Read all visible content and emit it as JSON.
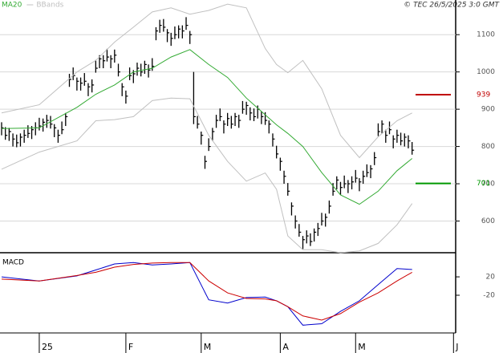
{
  "chart_data": [
    {
      "type": "ohlc",
      "source": "© TEC 26/5/2025 3:0 GMT",
      "xlim": [
        0,
        121
      ],
      "ylim": [
        515,
        1193
      ],
      "yticks": [
        600,
        700,
        800,
        900,
        1000,
        1100
      ],
      "grid": true,
      "bar_color": "#000000",
      "x": [
        0,
        1,
        2,
        3,
        4,
        5,
        6,
        7,
        8,
        9,
        10,
        11,
        12,
        13,
        14,
        15,
        16,
        17,
        18,
        19,
        20,
        21,
        22,
        23,
        24,
        25,
        26,
        27,
        28,
        29,
        30,
        31,
        32,
        33,
        34,
        35,
        36,
        37,
        38,
        39,
        40,
        41,
        42,
        43,
        44,
        45,
        46,
        47,
        48,
        49,
        50,
        51,
        52,
        53,
        54,
        55,
        56,
        57,
        58,
        59,
        60,
        61,
        62,
        63,
        64,
        65,
        66,
        67,
        68,
        69,
        70,
        71,
        72,
        73,
        74,
        75,
        76,
        77,
        78,
        79,
        80,
        81,
        82,
        83,
        84,
        85,
        86,
        87,
        88,
        89,
        90,
        91,
        92,
        93,
        94,
        95,
        96,
        97,
        98,
        99,
        100,
        101,
        102,
        103,
        104,
        105,
        106,
        107,
        108,
        109
      ],
      "high": [
        865,
        852,
        850,
        835,
        832,
        835,
        845,
        857,
        855,
        865,
        877,
        875,
        885,
        882,
        860,
        845,
        867,
        890,
        995,
        1012,
        985,
        985,
        997,
        970,
        980,
        1032,
        1045,
        1045,
        1062,
        1045,
        1060,
        1022,
        970,
        950,
        1012,
        1005,
        1025,
        1022,
        1030,
        1020,
        1037,
        1120,
        1140,
        1142,
        1115,
        1105,
        1122,
        1125,
        1125,
        1147,
        1110,
        1000,
        882,
        840,
        775,
        822,
        850,
        885,
        902,
        870,
        890,
        882,
        890,
        885,
        922,
        920,
        905,
        902,
        910,
        895,
        892,
        870,
        835,
        802,
        770,
        735,
        702,
        650,
        615,
        592,
        560,
        575,
        567,
        580,
        595,
        622,
        620,
        655,
        702,
        720,
        705,
        722,
        710,
        720,
        737,
        715,
        735,
        752,
        750,
        785,
        862,
        870,
        845,
        867,
        830,
        845,
        837,
        835,
        830,
        812
      ],
      "low": [
        830,
        818,
        815,
        800,
        798,
        800,
        810,
        823,
        820,
        830,
        843,
        840,
        850,
        848,
        825,
        810,
        833,
        855,
        960,
        978,
        950,
        950,
        963,
        935,
        945,
        998,
        1010,
        1010,
        1028,
        1010,
        1025,
        988,
        935,
        915,
        978,
        970,
        990,
        988,
        995,
        985,
        1003,
        1085,
        1105,
        1108,
        1080,
        1070,
        1088,
        1090,
        1090,
        1113,
        1075,
        860,
        848,
        805,
        740,
        788,
        815,
        850,
        868,
        835,
        855,
        848,
        855,
        850,
        888,
        885,
        870,
        868,
        875,
        860,
        858,
        835,
        800,
        768,
        735,
        700,
        668,
        615,
        580,
        558,
        525,
        540,
        533,
        545,
        560,
        588,
        585,
        620,
        668,
        685,
        670,
        688,
        675,
        685,
        703,
        680,
        700,
        718,
        715,
        750,
        828,
        835,
        810,
        833,
        795,
        810,
        803,
        800,
        795,
        778
      ],
      "close": [
        850,
        830,
        840,
        820,
        810,
        825,
        830,
        835,
        845,
        850,
        855,
        865,
        870,
        860,
        850,
        830,
        845,
        880,
        980,
        990,
        975,
        970,
        975,
        960,
        965,
        1010,
        1035,
        1030,
        1040,
        1035,
        1045,
        1000,
        960,
        935,
        990,
        995,
        1010,
        1000,
        1020,
        1005,
        1015,
        1110,
        1125,
        1120,
        1105,
        1090,
        1100,
        1115,
        1110,
        1125,
        1100,
        880,
        860,
        830,
        760,
        800,
        840,
        870,
        880,
        860,
        875,
        860,
        880,
        870,
        900,
        910,
        890,
        880,
        900,
        880,
        870,
        860,
        820,
        780,
        760,
        720,
        680,
        640,
        600,
        570,
        550,
        560,
        545,
        570,
        580,
        600,
        610,
        640,
        680,
        710,
        690,
        700,
        700,
        705,
        715,
        705,
        720,
        730,
        740,
        770,
        840,
        860,
        830,
        845,
        820,
        830,
        815,
        825,
        815,
        790
      ],
      "series": [
        {
          "name": "MA20",
          "color": "#33aa33",
          "x": [
            0,
            10,
            20,
            25,
            30,
            35,
            40,
            45,
            50,
            55,
            60,
            65,
            70,
            73,
            76,
            80,
            85,
            90,
            95,
            100,
            105,
            109
          ],
          "values": [
            848,
            850,
            905,
            940,
            965,
            1000,
            1010,
            1040,
            1060,
            1020,
            985,
            930,
            885,
            858,
            835,
            800,
            730,
            670,
            645,
            680,
            735,
            768
          ]
        },
        {
          "name": "BBands",
          "color": "#c0c0c0",
          "x": [
            0,
            10,
            20,
            25,
            30,
            35,
            40,
            45,
            50,
            55,
            60,
            65,
            70,
            73,
            76,
            80,
            85,
            90,
            95,
            100,
            105,
            109
          ],
          "upper": [
            890,
            912,
            1000,
            1031,
            1080,
            1120,
            1161,
            1172,
            1155,
            1165,
            1182,
            1172,
            1063,
            1020,
            998,
            1031,
            955,
            830,
            770,
            826,
            869,
            890
          ],
          "lower": [
            739,
            785,
            815,
            869,
            872,
            880,
            923,
            930,
            928,
            830,
            760,
            707,
            729,
            685,
            560,
            523,
            523,
            515,
            520,
            540,
            590,
            647
          ]
        }
      ],
      "markers": [
        {
          "value": 939,
          "color": "#c00000"
        },
        {
          "value": 701,
          "color": "#009900"
        }
      ]
    },
    {
      "type": "line",
      "title": "MACD",
      "xlim": [
        0,
        121
      ],
      "ylim": [
        -102,
        69
      ],
      "yticks": [
        20,
        -20
      ],
      "xticks": [
        {
          "value": 10,
          "label": "25"
        },
        {
          "value": 33,
          "label": "F"
        },
        {
          "value": 53,
          "label": "M"
        },
        {
          "value": 74,
          "label": "A"
        },
        {
          "value": 94,
          "label": "M"
        },
        {
          "value": 120,
          "label": "J"
        }
      ],
      "series": [
        {
          "color": "#0000cc",
          "x": [
            0,
            10,
            20,
            25,
            30,
            35,
            40,
            45,
            50,
            55,
            60,
            65,
            70,
            73,
            76,
            80,
            85,
            90,
            95,
            100,
            105,
            109
          ],
          "values": [
            20,
            11,
            22,
            35,
            48,
            51,
            46,
            48,
            51,
            -30,
            -37,
            -25,
            -24,
            -32,
            -45,
            -85,
            -82,
            -55,
            -32,
            3,
            38,
            36
          ]
        },
        {
          "color": "#cc0000",
          "x": [
            0,
            10,
            20,
            25,
            30,
            35,
            40,
            45,
            50,
            55,
            60,
            65,
            70,
            73,
            76,
            80,
            85,
            90,
            95,
            100,
            105,
            109
          ],
          "values": [
            15,
            11,
            23,
            30,
            41,
            47,
            50,
            51,
            51,
            11,
            -15,
            -27,
            -28,
            -32,
            -45,
            -65,
            -74,
            -60,
            -35,
            -15,
            11,
            30
          ]
        }
      ]
    }
  ]
}
